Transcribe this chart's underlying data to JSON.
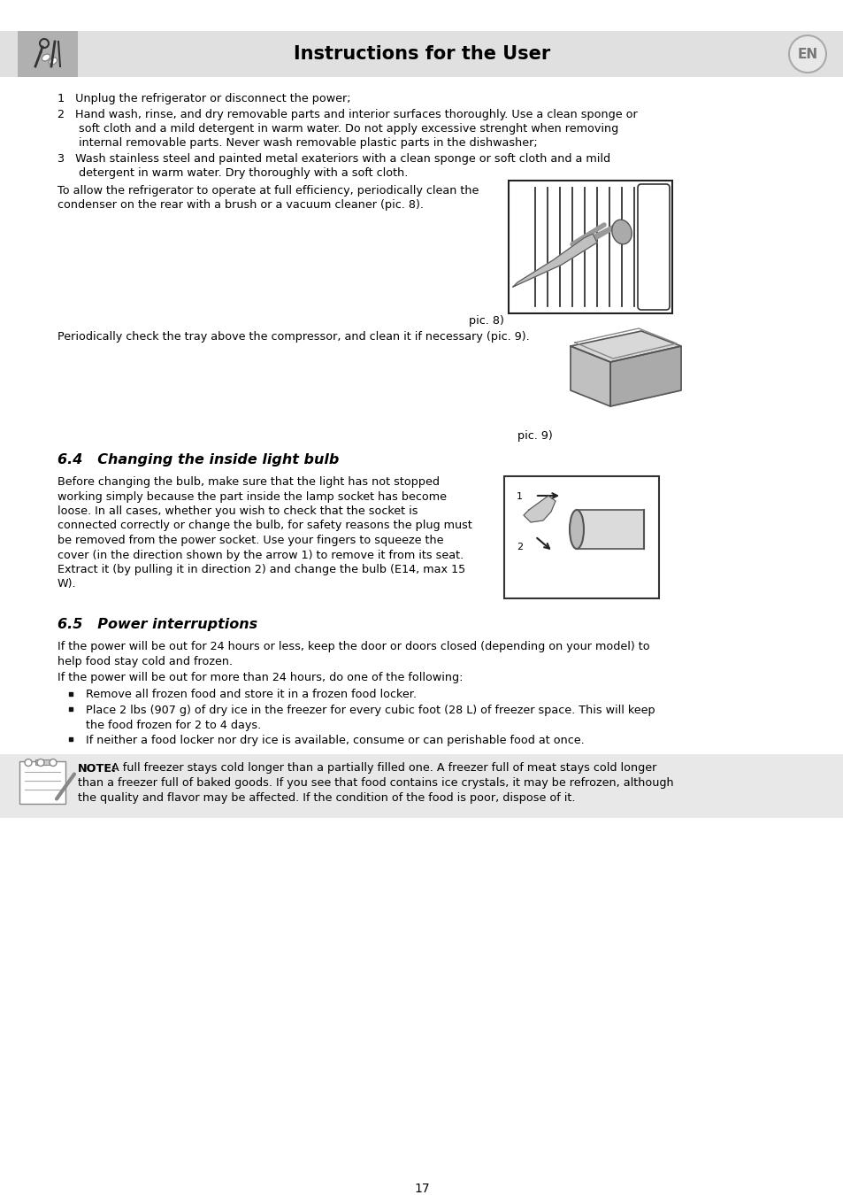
{
  "page_bg": "#ffffff",
  "header_bg": "#e0e0e0",
  "note_bg": "#e8e8e8",
  "header_title": "Instructions for the User",
  "header_title_fontsize": 15,
  "en_badge": "EN",
  "page_number": "17",
  "body_fontsize": 9.2,
  "section_header_fontsize": 11.5,
  "text_color": "#000000",
  "item1": "1   Unplug the refrigerator or disconnect the power;",
  "item2_line1": "2   Hand wash, rinse, and dry removable parts and interior surfaces thoroughly. Use a clean sponge or",
  "item2_line2": "      soft cloth and a mild detergent in warm water. Do not apply excessive strenght when removing",
  "item2_line3": "      internal removable parts. Never wash removable plastic parts in the dishwasher;",
  "item3_line1": "3   Wash stainless steel and painted metal exateriors with a clean sponge or soft cloth and a mild",
  "item3_line2": "      detergent in warm water. Dry thoroughly with a soft cloth.",
  "para1_line1": "To allow the refrigerator to operate at full efficiency, periodically clean the",
  "para1_line2": "condenser on the rear with a brush or a vacuum cleaner (pic. 8).",
  "pic8_label": "pic. 8)",
  "para2": "Periodically check the tray above the compressor, and clean it if necessary (pic. 9).",
  "pic9_label": "pic. 9)",
  "section64_title": "6.4   Changing the inside light bulb",
  "section64_body_line1": "Before changing the bulb, make sure that the light has not stopped",
  "section64_body_line2": "working simply because the part inside the lamp socket has become",
  "section64_body_line3": "loose. In all cases, whether you wish to check that the socket is",
  "section64_body_line4": "connected correctly or change the bulb, for safety reasons the plug must",
  "section64_body_line5": "be removed from the power socket. Use your fingers to squeeze the",
  "section64_body_line6": "cover (in the direction shown by the arrow 1) to remove it from its seat.",
  "section64_body_line7": "Extract it (by pulling it in direction 2) and change the bulb (E14, max 15",
  "section64_body_line8": "W).",
  "section65_title": "6.5   Power interruptions",
  "section65_para1_line1": "If the power will be out for 24 hours or less, keep the door or doors closed (depending on your model) to",
  "section65_para1_line2": "help food stay cold and frozen.",
  "section65_para2": "If the power will be out for more than 24 hours, do one of the following:",
  "bullet1": "Remove all frozen food and store it in a frozen food locker.",
  "bullet2_line1": "Place 2 lbs (907 g) of dry ice in the freezer for every cubic foot (28 L) of freezer space. This will keep",
  "bullet2_line2": "the food frozen for 2 to 4 days.",
  "bullet3": "If neither a food locker nor dry ice is available, consume or can perishable food at once.",
  "note_bold": "NOTE:",
  "note_text_line1": " A full freezer stays cold longer than a partially filled one. A freezer full of meat stays cold longer",
  "note_text_line2": "than a freezer full of baked goods. If you see that food contains ice crystals, it may be refrozen, although",
  "note_text_line3": "the quality and flavor may be affected. If the condition of the food is poor, dispose of it."
}
